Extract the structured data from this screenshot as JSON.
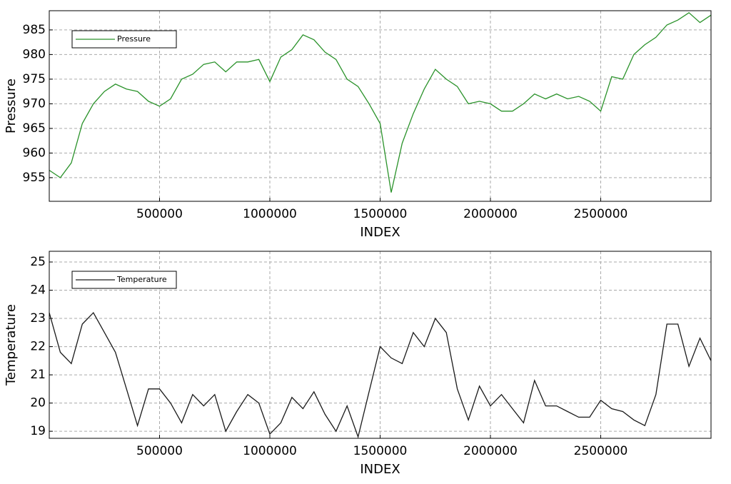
{
  "chart_data": [
    {
      "type": "line",
      "xlabel": "INDEX",
      "ylabel": "Pressure",
      "x": [
        0,
        50000,
        100000,
        150000,
        200000,
        250000,
        300000,
        350000,
        400000,
        450000,
        500000,
        550000,
        600000,
        650000,
        700000,
        750000,
        800000,
        850000,
        900000,
        950000,
        1000000,
        1050000,
        1100000,
        1150000,
        1200000,
        1250000,
        1300000,
        1350000,
        1400000,
        1450000,
        1500000,
        1550000,
        1600000,
        1650000,
        1700000,
        1750000,
        1800000,
        1850000,
        1900000,
        1950000,
        2000000,
        2050000,
        2100000,
        2150000,
        2200000,
        2250000,
        2300000,
        2350000,
        2400000,
        2450000,
        2500000,
        2550000,
        2600000,
        2650000,
        2700000,
        2750000,
        2800000,
        2850000,
        2900000,
        2950000,
        3000000
      ],
      "series": [
        {
          "name": "Pressure",
          "color": "#2a922a",
          "values": [
            956.5,
            955,
            958,
            966,
            970,
            972.5,
            974,
            973,
            972.5,
            970.5,
            969.5,
            971,
            975,
            976,
            978,
            978.5,
            976.5,
            978.5,
            978.5,
            979,
            974.5,
            979.5,
            981,
            984,
            983,
            980.5,
            979,
            975,
            973.5,
            970,
            966,
            952,
            962,
            968,
            973,
            977,
            975,
            973.5,
            970,
            970.5,
            970,
            968.5,
            968.5,
            970,
            972,
            971,
            972,
            971,
            971.5,
            970.5,
            968.5,
            975.5,
            975,
            980,
            982,
            983.5,
            986,
            987,
            988.5,
            986.5,
            988
          ]
        }
      ],
      "xlim": [
        0,
        3000000
      ],
      "xticks": [
        500000,
        1000000,
        1500000,
        2000000,
        2500000
      ],
      "ylim": [
        950.2,
        988.9
      ],
      "yticks": [
        955,
        960,
        965,
        970,
        975,
        980,
        985
      ],
      "grid": true,
      "legend": "upper left"
    },
    {
      "type": "line",
      "xlabel": "INDEX",
      "ylabel": "Temperature",
      "x": [
        0,
        50000,
        100000,
        150000,
        200000,
        250000,
        300000,
        350000,
        400000,
        450000,
        500000,
        550000,
        600000,
        650000,
        700000,
        750000,
        800000,
        850000,
        900000,
        950000,
        1000000,
        1050000,
        1100000,
        1150000,
        1200000,
        1250000,
        1300000,
        1350000,
        1400000,
        1450000,
        1500000,
        1550000,
        1600000,
        1650000,
        1700000,
        1750000,
        1800000,
        1850000,
        1900000,
        1950000,
        2000000,
        2050000,
        2100000,
        2150000,
        2200000,
        2250000,
        2300000,
        2350000,
        2400000,
        2450000,
        2500000,
        2550000,
        2600000,
        2650000,
        2700000,
        2750000,
        2800000,
        2850000,
        2900000,
        2950000,
        3000000
      ],
      "series": [
        {
          "name": "Temperature",
          "color": "#1a1a1a",
          "values": [
            23.2,
            21.8,
            21.4,
            22.8,
            23.2,
            22.5,
            21.8,
            20.5,
            19.2,
            20.5,
            20.5,
            20,
            19.3,
            20.3,
            19.9,
            20.3,
            19,
            19.7,
            20.3,
            20,
            18.9,
            19.3,
            20.2,
            19.8,
            20.4,
            19.6,
            19,
            19.9,
            18.8,
            20.4,
            22,
            21.6,
            21.4,
            22.5,
            22,
            23,
            22.5,
            20.5,
            19.4,
            20.6,
            19.9,
            20.3,
            19.8,
            19.3,
            20.8,
            19.9,
            19.9,
            19.7,
            19.5,
            19.5,
            20.1,
            19.8,
            19.7,
            19.4,
            19.2,
            20.3,
            22.8,
            22.8,
            21.3,
            22.3,
            21.5
          ]
        }
      ],
      "xlim": [
        0,
        3000000
      ],
      "xticks": [
        500000,
        1000000,
        1500000,
        2000000,
        2500000
      ],
      "ylim": [
        18.75,
        25.38
      ],
      "yticks": [
        19,
        20,
        21,
        22,
        23,
        24,
        25
      ],
      "grid": true,
      "legend": "upper left"
    }
  ]
}
